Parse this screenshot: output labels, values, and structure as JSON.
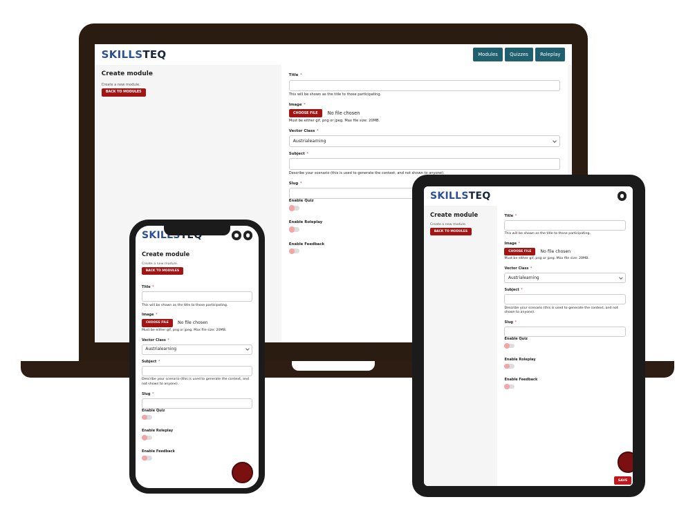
{
  "brand": [
    "SKILLS",
    "TEQ"
  ],
  "nav": [
    "Modules",
    "Quizzes",
    "Roleplay"
  ],
  "page_title": "Create module",
  "page_subtitle": "Create a new module.",
  "back_button": "BACK TO MODULES",
  "required_mark": "*",
  "fields": {
    "title": {
      "label": "Title",
      "help": "This will be shown as the title to those participating."
    },
    "image": {
      "label": "Image",
      "button": "CHOOSE FILE",
      "status": "No file chosen",
      "help": "Must be either gif, png or jpeg. Max file size: 20MB."
    },
    "vector_class": {
      "label": "Vector Class",
      "value": "Austrialearning"
    },
    "subject": {
      "label": "Subject",
      "help": "Describe your scenario (this is used to generate the context, and not shown to anyone)."
    },
    "slug": {
      "label": "Slug"
    }
  },
  "toggles": [
    "Enable Quiz",
    "Enable Roleplay",
    "Enable Feedback"
  ],
  "save": "SAVE"
}
